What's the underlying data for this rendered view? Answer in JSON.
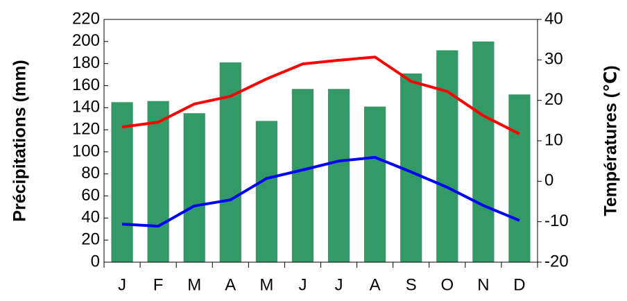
{
  "chart_data": {
    "type": "bar",
    "categories": [
      "J",
      "F",
      "M",
      "A",
      "M",
      "J",
      "J",
      "A",
      "S",
      "O",
      "N",
      "D"
    ],
    "y_label": "Précipitations (mm)",
    "y2_label": "Températures (℃)",
    "ylim": [
      0,
      220
    ],
    "yticks": [
      0,
      20,
      40,
      60,
      80,
      100,
      120,
      140,
      160,
      180,
      200,
      220
    ],
    "y2lim": [
      -20,
      40
    ],
    "y2ticks": [
      -20,
      -10,
      0,
      10,
      20,
      30,
      40
    ],
    "series": [
      {
        "type": "bar",
        "color": "#339966",
        "values": [
          145,
          146,
          135,
          181,
          128,
          157,
          157,
          141,
          171,
          192,
          200,
          152
        ]
      },
      {
        "type": "line",
        "axis": "y2",
        "color": "#ff0000",
        "values": [
          13.4,
          14.6,
          19.1,
          21,
          25.3,
          29,
          29.9,
          30.7,
          24.7,
          22.2,
          16.2,
          11.7
        ]
      },
      {
        "type": "line",
        "axis": "y2",
        "color": "#0000ff",
        "values": [
          -10.6,
          -11.1,
          -6.1,
          -4.6,
          0.7,
          2.8,
          5,
          5.9,
          2.3,
          -1.5,
          -6,
          -9.7
        ]
      }
    ]
  }
}
